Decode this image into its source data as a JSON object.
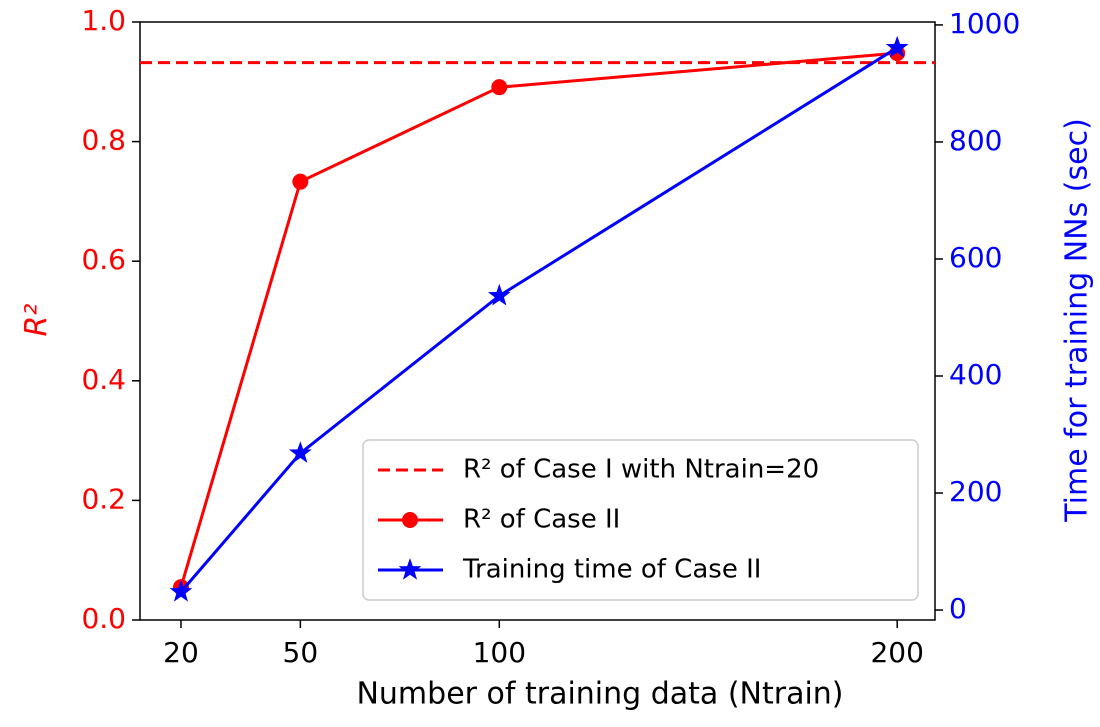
{
  "chart_data": {
    "type": "line",
    "xlabel": "Number of training data (Ntrain)",
    "ylabel": "R²",
    "y2label": "Time for training NNs (sec)",
    "x": [
      20,
      50,
      100,
      200
    ],
    "xlim": [
      9.7,
      209.5
    ],
    "xticks": [
      20,
      50,
      100,
      200
    ],
    "ylim": [
      0,
      1.0
    ],
    "yticks": [
      {
        "value": 0,
        "label": "0.0"
      },
      0.2,
      0.4,
      0.6,
      0.8,
      {
        "value": 1,
        "label": "1.0"
      }
    ],
    "y2lim": [
      -17,
      1005
    ],
    "y2ticks": [
      0,
      200,
      400,
      600,
      800,
      1000
    ],
    "reference_line": {
      "name": "R² of Case I with Ntrain=20",
      "value": 0.932,
      "color": "#ff0000"
    },
    "series": [
      {
        "name": "R² of Case II",
        "color": "#ff0000",
        "marker": "circle",
        "values": [
          0.055,
          0.733,
          0.891,
          0.948
        ]
      },
      {
        "name": "Training time of Case II",
        "color": "#0000ff",
        "marker": "star",
        "axis": "y2",
        "values": [
          31,
          268,
          537,
          961
        ]
      }
    ],
    "legend": "lower right"
  }
}
